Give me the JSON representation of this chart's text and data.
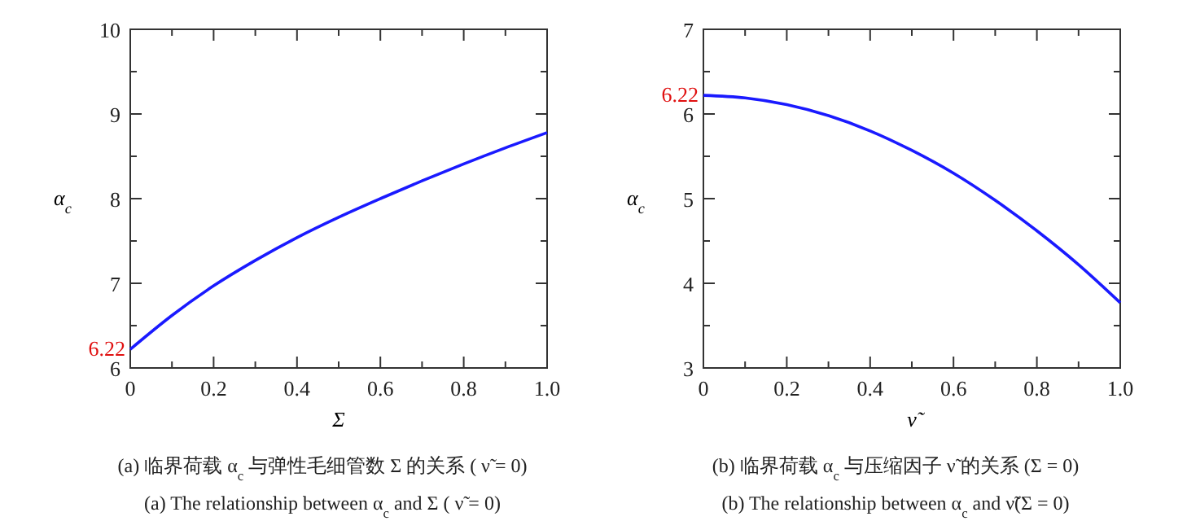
{
  "chart_data": [
    {
      "type": "line",
      "xlabel": "Σ",
      "ylabel": "α$_{c}$",
      "x": [
        0,
        0.1,
        0.2,
        0.3,
        0.4,
        0.5,
        0.6,
        0.7,
        0.8,
        0.9,
        1.0
      ],
      "series": [
        {
          "color": "#1a1aff",
          "values": [
            6.22,
            6.62,
            6.97,
            7.27,
            7.54,
            7.78,
            8.0,
            8.21,
            8.41,
            8.6,
            8.78
          ]
        }
      ],
      "xlim": [
        0,
        1
      ],
      "xticks": [
        0,
        {
          "value": 0.1,
          "label": null
        },
        0.2,
        {
          "value": 0.3,
          "label": null
        },
        0.4,
        {
          "value": 0.5,
          "label": null
        },
        0.6,
        {
          "value": 0.7,
          "label": null
        },
        0.8,
        {
          "value": 0.9,
          "label": null
        },
        {
          "value": 1,
          "label": "1.0"
        }
      ],
      "ylim": [
        6,
        10
      ],
      "yticks": [
        6,
        {
          "value": 6.5,
          "label": null
        },
        7,
        {
          "value": 7.5,
          "label": null
        },
        8,
        {
          "value": 8.5,
          "label": null
        },
        9,
        {
          "value": 9.5,
          "label": null
        },
        10
      ],
      "line_style": "solid",
      "annotations": [
        {
          "text": "6.22",
          "x": 0,
          "y": 6.22
        },
        "(a) 临界荷载 α$_{c}$ 与弹性毛细管数 Σ 的关系 ( ν̃ = 0)",
        "(a) The relationship between α$_{c}$ and Σ ( ν̃ = 0)"
      ]
    },
    {
      "type": "line",
      "xlabel": "ν̃",
      "ylabel": "α$_{c}$",
      "x": [
        0,
        0.1,
        0.2,
        0.3,
        0.4,
        0.5,
        0.6,
        0.7,
        0.8,
        0.9,
        1.0
      ],
      "series": [
        {
          "color": "#1a1aff",
          "values": [
            6.22,
            6.19,
            6.11,
            5.98,
            5.8,
            5.57,
            5.3,
            4.98,
            4.62,
            4.22,
            3.77
          ]
        }
      ],
      "xlim": [
        0,
        1
      ],
      "xticks": [
        0,
        {
          "value": 0.1,
          "label": null
        },
        0.2,
        {
          "value": 0.3,
          "label": null
        },
        0.4,
        {
          "value": 0.5,
          "label": null
        },
        0.6,
        {
          "value": 0.7,
          "label": null
        },
        0.8,
        {
          "value": 0.9,
          "label": null
        },
        {
          "value": 1,
          "label": "1.0"
        }
      ],
      "ylim": [
        3,
        7
      ],
      "yticks": [
        3,
        {
          "value": 3.5,
          "label": null
        },
        4,
        {
          "value": 4.5,
          "label": null
        },
        5,
        {
          "value": 5.5,
          "label": null
        },
        6,
        {
          "value": 6.5,
          "label": null
        },
        7
      ],
      "line_style": "solid",
      "annotations": [
        {
          "text": "6.22",
          "x": 0,
          "y": 6.22
        },
        "(b) 临界荷载 α$_{c}$ 与压缩因子 ν̃ 的关系 (Σ = 0)",
        "(b) The relationship between α$_{c}$ and ν̃(Σ = 0)"
      ]
    }
  ]
}
